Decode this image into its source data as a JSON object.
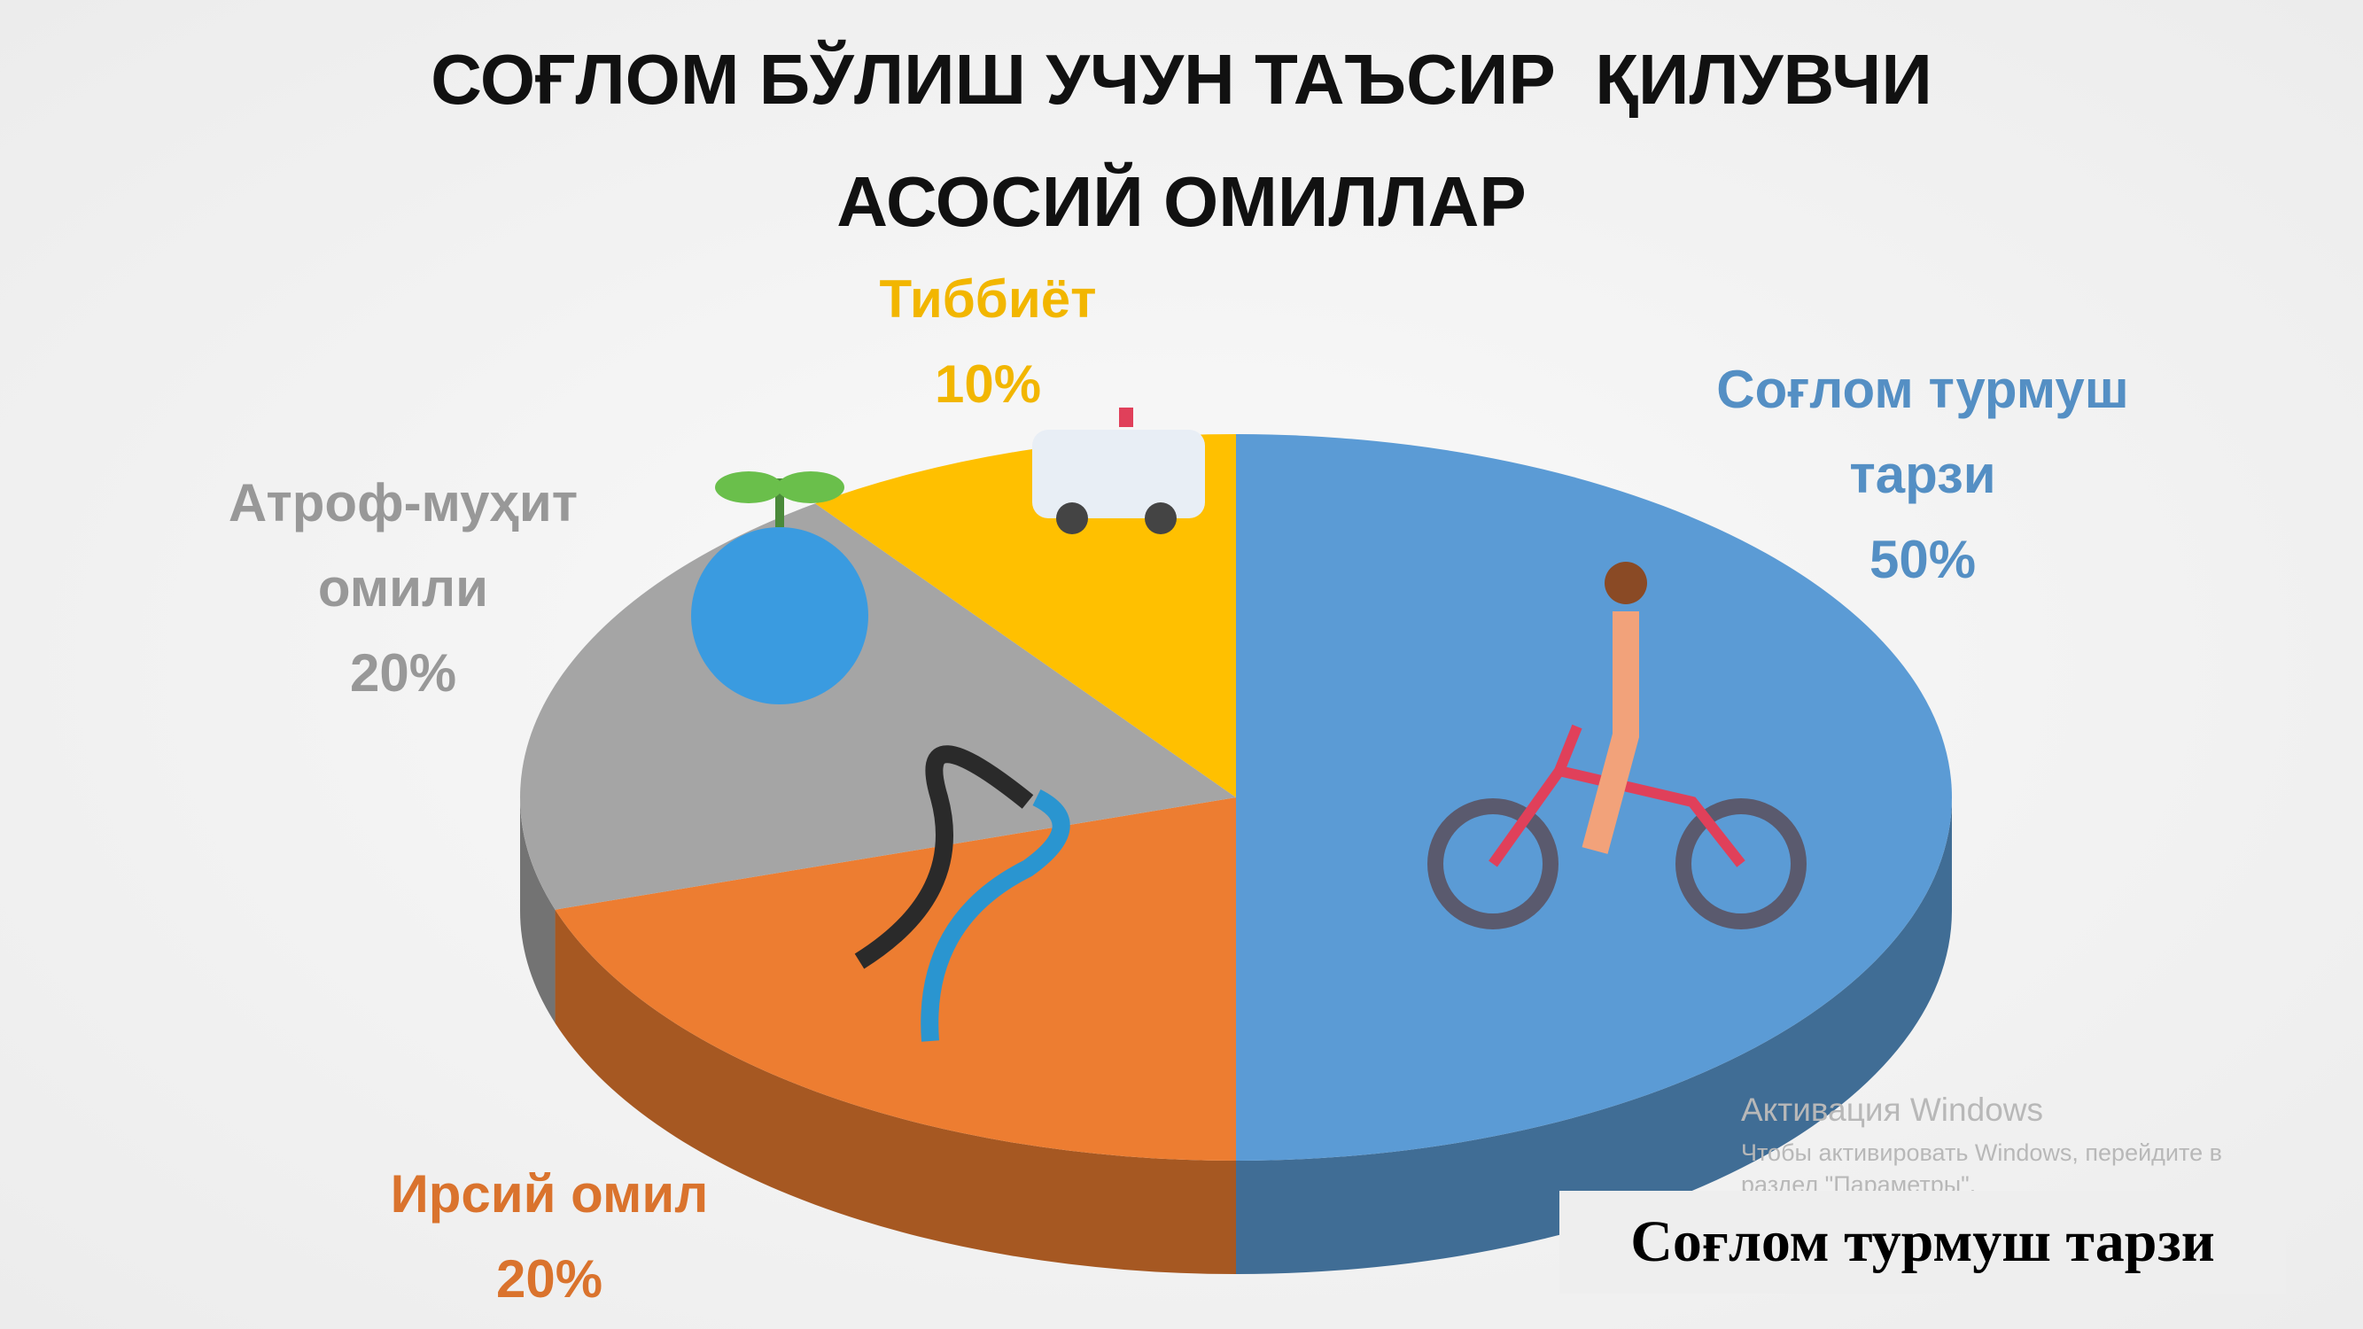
{
  "chart_data": {
    "type": "pie3d",
    "title": "СОҒЛОМ БЎЛИШ УЧУН ТАЪСИР  ҚИЛУВЧИ",
    "subtitle": "АСОСИЙ ОМИЛЛАР",
    "categories": [
      "Соғлом турмуш тарзи",
      "Ирсий омил",
      "Атроф-муҳит омили",
      "Тиббиёт"
    ],
    "values": [
      50,
      20,
      20,
      10
    ],
    "value_labels": [
      "50%",
      "20%",
      "20%",
      "10%"
    ],
    "colors": [
      "#5b9bd5",
      "#ed7d31",
      "#a5a5a5",
      "#ffc000"
    ]
  },
  "watermark": {
    "title": "Активация Windows",
    "line1": "Чтобы активировать Windows, перейдите в",
    "line2": "раздел \"Параметры\"."
  },
  "caption": "Соғлом турмуш тарзи"
}
